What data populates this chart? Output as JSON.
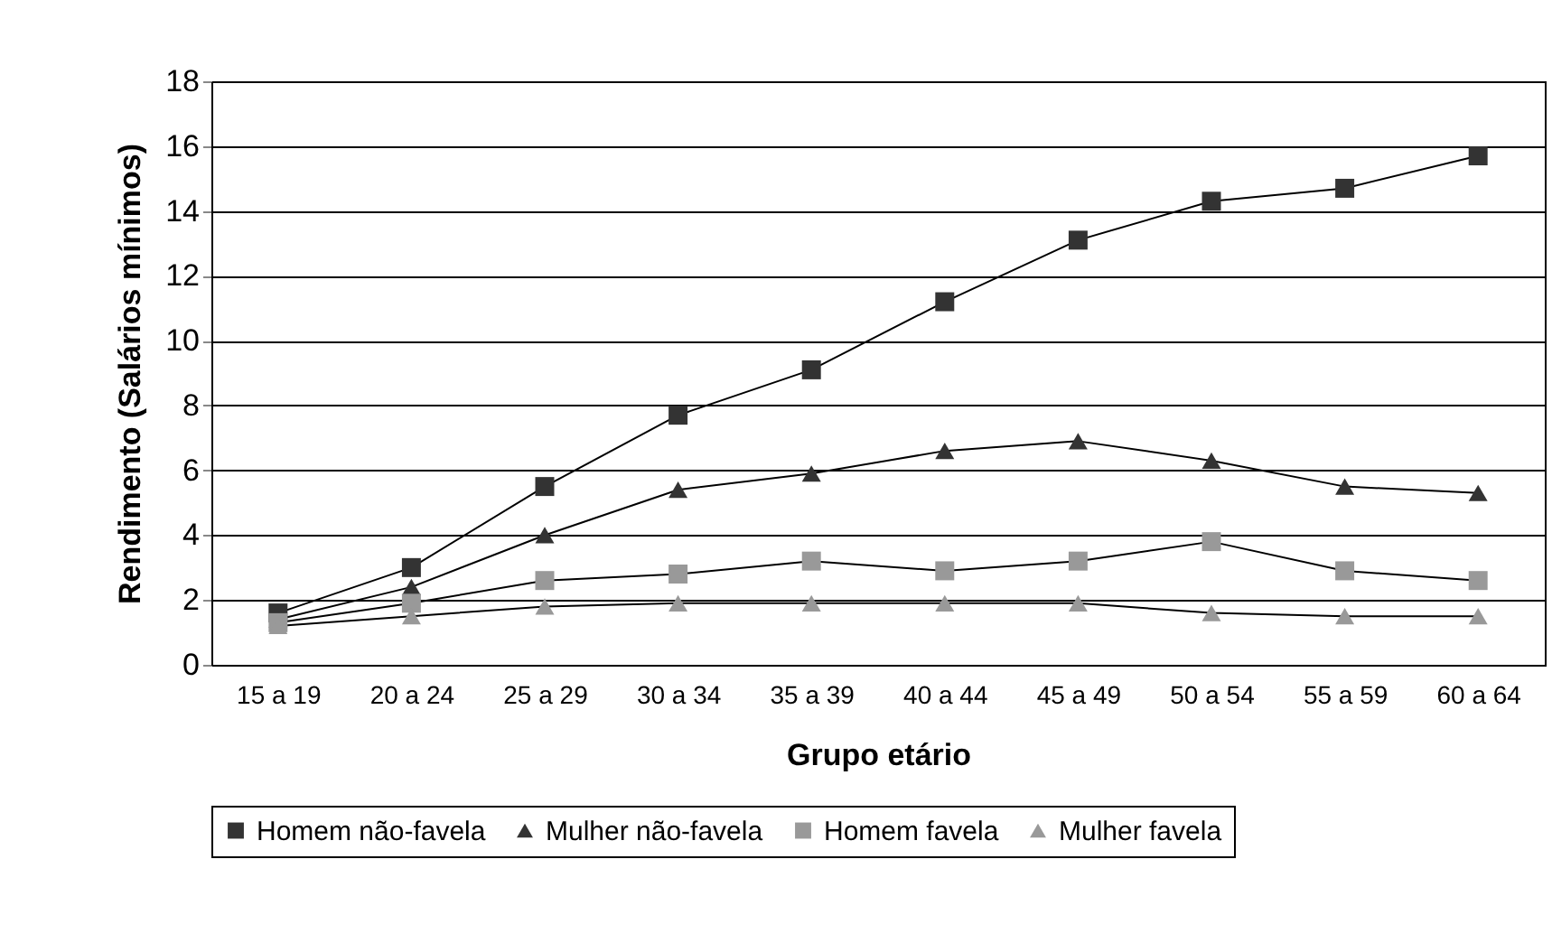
{
  "chart_data": {
    "type": "line",
    "xlabel": "Grupo etário",
    "ylabel": "Rendimento (Salários mínimos)",
    "categories": [
      "15 a 19",
      "20 a 24",
      "25 a 29",
      "30 a 34",
      "35 a 39",
      "40 a 44",
      "45 a 49",
      "50 a 54",
      "55 a 59",
      "60 a 64"
    ],
    "series": [
      {
        "name": "Homem não-favela",
        "color": "#333333",
        "marker": "square",
        "values": [
          1.6,
          3.0,
          5.5,
          7.7,
          9.1,
          11.2,
          13.1,
          14.3,
          14.7,
          15.7
        ]
      },
      {
        "name": "Mulher não-favela",
        "color": "#333333",
        "marker": "triangle",
        "values": [
          1.4,
          2.4,
          4.0,
          5.4,
          5.9,
          6.6,
          6.9,
          6.3,
          5.5,
          5.3
        ]
      },
      {
        "name": "Homem favela",
        "color": "#999999",
        "marker": "square",
        "values": [
          1.3,
          1.9,
          2.6,
          2.8,
          3.2,
          2.9,
          3.2,
          3.8,
          2.9,
          2.6
        ]
      },
      {
        "name": "Mulher favela",
        "color": "#999999",
        "marker": "triangle",
        "values": [
          1.2,
          1.5,
          1.8,
          1.9,
          1.9,
          1.9,
          1.9,
          1.6,
          1.5,
          1.5
        ]
      }
    ],
    "ylim": [
      0,
      18
    ],
    "yticks": [
      0,
      2,
      4,
      6,
      8,
      10,
      12,
      14,
      16,
      18
    ],
    "grid": "y",
    "legend": "bottom",
    "line_style": "solid"
  }
}
